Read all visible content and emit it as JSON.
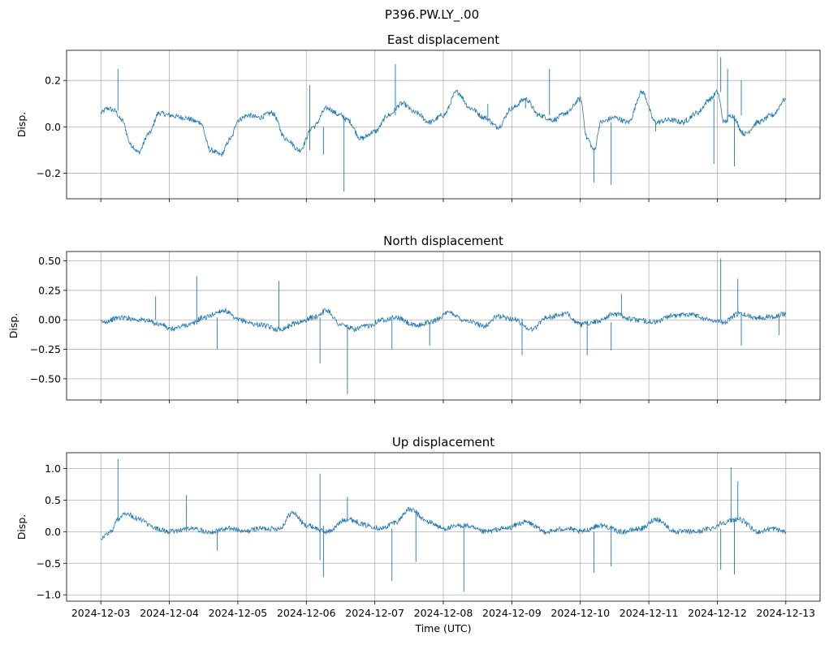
{
  "figure_title": "P396.PW.LY_.00",
  "colors": {
    "line": "#1f77b4",
    "grid": "#b0b0b0",
    "axes": "#000000"
  },
  "chart_data": [
    {
      "type": "line",
      "title": "East displacement",
      "xlabel": "",
      "ylabel": "Disp.",
      "ylim": [
        -0.31,
        0.33
      ],
      "yticks": [
        -0.2,
        0.0,
        0.2
      ],
      "ytick_labels": [
        "−0.2",
        "0.0",
        "0.2"
      ],
      "x_categories": [
        "2024-12-03",
        "2024-12-04",
        "2024-12-05",
        "2024-12-06",
        "2024-12-07",
        "2024-12-08",
        "2024-12-09",
        "2024-12-10",
        "2024-12-11",
        "2024-12-12",
        "2024-12-13"
      ],
      "xlim_days": [
        -0.5,
        10.5
      ],
      "grid": true,
      "series": [
        {
          "name": "East",
          "x_days": [
            0,
            0.1,
            0.2,
            0.3,
            0.45,
            0.55,
            0.7,
            0.85,
            1.0,
            1.2,
            1.45,
            1.6,
            1.75,
            1.9,
            2.0,
            2.15,
            2.3,
            2.5,
            2.7,
            2.9,
            3.1,
            3.3,
            3.5,
            3.6,
            3.8,
            4.0,
            4.2,
            4.4,
            4.6,
            4.8,
            5.0,
            5.2,
            5.4,
            5.6,
            5.8,
            6.0,
            6.2,
            6.4,
            6.6,
            6.8,
            7.0,
            7.1,
            7.2,
            7.3,
            7.5,
            7.7,
            7.9,
            8.1,
            8.3,
            8.5,
            8.7,
            8.9,
            9.0,
            9.1,
            9.2,
            9.4,
            9.6,
            9.8,
            10.0
          ],
          "y": [
            0.06,
            0.08,
            0.07,
            0.03,
            -0.08,
            -0.11,
            -0.03,
            0.06,
            0.05,
            0.04,
            0.02,
            -0.1,
            -0.12,
            -0.05,
            0.03,
            0.05,
            0.04,
            0.06,
            -0.05,
            -0.1,
            0.0,
            0.08,
            0.05,
            0.03,
            -0.05,
            -0.02,
            0.05,
            0.1,
            0.06,
            0.02,
            0.05,
            0.15,
            0.08,
            0.04,
            0.0,
            0.08,
            0.12,
            0.05,
            0.03,
            0.06,
            0.12,
            -0.05,
            -0.1,
            0.02,
            0.04,
            0.02,
            0.15,
            0.02,
            0.03,
            0.02,
            0.06,
            0.12,
            0.15,
            0.02,
            0.05,
            -0.03,
            0.02,
            0.05,
            0.12
          ],
          "spikes": [
            [
              0.25,
              0.25
            ],
            [
              3.05,
              0.18
            ],
            [
              3.55,
              -0.28
            ],
            [
              3.25,
              -0.12
            ],
            [
              4.3,
              0.27
            ],
            [
              5.65,
              0.1
            ],
            [
              6.2,
              0.08
            ],
            [
              6.55,
              0.25
            ],
            [
              7.2,
              -0.24
            ],
            [
              7.45,
              -0.25
            ],
            [
              8.1,
              -0.02
            ],
            [
              8.55,
              0.04
            ],
            [
              9.05,
              0.3
            ],
            [
              8.95,
              -0.16
            ],
            [
              9.15,
              0.25
            ],
            [
              9.25,
              -0.17
            ],
            [
              9.35,
              0.2
            ]
          ]
        }
      ]
    },
    {
      "type": "line",
      "title": "North displacement",
      "xlabel": "",
      "ylabel": "Disp.",
      "ylim": [
        -0.68,
        0.58
      ],
      "yticks": [
        -0.5,
        -0.25,
        0.0,
        0.25,
        0.5
      ],
      "ytick_labels": [
        "−0.50",
        "−0.25",
        "0.00",
        "0.25",
        "0.50"
      ],
      "x_categories": [
        "2024-12-03",
        "2024-12-04",
        "2024-12-05",
        "2024-12-06",
        "2024-12-07",
        "2024-12-08",
        "2024-12-09",
        "2024-12-10",
        "2024-12-11",
        "2024-12-12",
        "2024-12-13"
      ],
      "xlim_days": [
        -0.5,
        10.5
      ],
      "grid": true,
      "series": [
        {
          "name": "North",
          "x_days": [
            0,
            0.3,
            0.6,
            0.9,
            1.0,
            1.3,
            1.5,
            1.8,
            2.0,
            2.3,
            2.6,
            2.9,
            3.1,
            3.3,
            3.5,
            3.7,
            3.9,
            4.1,
            4.3,
            4.6,
            4.8,
            5.1,
            5.3,
            5.6,
            5.8,
            6.0,
            6.3,
            6.5,
            6.8,
            7.0,
            7.2,
            7.5,
            7.8,
            8.1,
            8.3,
            8.6,
            8.9,
            9.1,
            9.3,
            9.6,
            9.8,
            10.0
          ],
          "y": [
            -0.02,
            0.02,
            0.0,
            -0.04,
            -0.08,
            -0.04,
            0.02,
            0.08,
            0.0,
            -0.04,
            -0.08,
            -0.02,
            0.02,
            0.08,
            -0.04,
            -0.08,
            -0.05,
            0.0,
            0.02,
            -0.05,
            -0.02,
            0.06,
            0.0,
            -0.05,
            0.03,
            0.01,
            -0.08,
            0.02,
            0.05,
            -0.04,
            -0.02,
            0.05,
            0.0,
            -0.02,
            0.03,
            0.05,
            0.0,
            -0.02,
            0.05,
            0.02,
            0.03,
            0.05
          ],
          "spikes": [
            [
              0.8,
              0.2
            ],
            [
              1.4,
              0.37
            ],
            [
              1.7,
              -0.25
            ],
            [
              2.6,
              0.33
            ],
            [
              3.2,
              -0.37
            ],
            [
              3.6,
              -0.63
            ],
            [
              4.25,
              -0.25
            ],
            [
              4.8,
              -0.22
            ],
            [
              6.15,
              -0.3
            ],
            [
              7.1,
              -0.3
            ],
            [
              7.6,
              0.22
            ],
            [
              7.45,
              -0.26
            ],
            [
              9.05,
              0.52
            ],
            [
              9.3,
              0.35
            ],
            [
              9.35,
              -0.22
            ],
            [
              9.9,
              -0.13
            ]
          ]
        }
      ]
    },
    {
      "type": "line",
      "title": "Up displacement",
      "xlabel": "Time (UTC)",
      "ylabel": "Disp.",
      "ylim": [
        -1.1,
        1.25
      ],
      "yticks": [
        -1.0,
        -0.5,
        0.0,
        0.5,
        1.0
      ],
      "ytick_labels": [
        "−1.0",
        "−0.5",
        "0.0",
        "0.5",
        "1.0"
      ],
      "x_categories": [
        "2024-12-03",
        "2024-12-04",
        "2024-12-05",
        "2024-12-06",
        "2024-12-07",
        "2024-12-08",
        "2024-12-09",
        "2024-12-10",
        "2024-12-11",
        "2024-12-12",
        "2024-12-13"
      ],
      "xlim_days": [
        -0.5,
        10.5
      ],
      "grid": true,
      "series": [
        {
          "name": "Up",
          "x_days": [
            0,
            0.15,
            0.25,
            0.35,
            0.55,
            0.8,
            1.0,
            1.3,
            1.6,
            1.9,
            2.1,
            2.3,
            2.6,
            2.8,
            3.0,
            3.3,
            3.6,
            3.9,
            4.1,
            4.3,
            4.5,
            4.8,
            5.0,
            5.3,
            5.6,
            5.9,
            6.2,
            6.5,
            6.8,
            7.0,
            7.3,
            7.6,
            7.9,
            8.1,
            8.4,
            8.7,
            8.9,
            9.1,
            9.3,
            9.6,
            9.8,
            10.0
          ],
          "y": [
            -0.1,
            0.0,
            0.2,
            0.3,
            0.2,
            0.05,
            0.0,
            0.05,
            0.0,
            0.05,
            0.0,
            0.05,
            0.05,
            0.3,
            0.1,
            0.0,
            0.2,
            0.1,
            0.05,
            0.15,
            0.35,
            0.15,
            0.05,
            0.1,
            0.0,
            0.05,
            0.15,
            0.0,
            0.05,
            0.0,
            0.1,
            0.0,
            0.05,
            0.2,
            0.0,
            0.0,
            0.05,
            0.15,
            0.2,
            0.0,
            0.05,
            0.0
          ],
          "spikes": [
            [
              0.25,
              1.15
            ],
            [
              1.25,
              0.58
            ],
            [
              1.7,
              -0.3
            ],
            [
              3.2,
              0.92
            ],
            [
              3.25,
              -0.72
            ],
            [
              3.6,
              0.55
            ],
            [
              3.2,
              -0.45
            ],
            [
              4.25,
              -0.78
            ],
            [
              4.6,
              -0.48
            ],
            [
              5.3,
              -0.95
            ],
            [
              7.2,
              -0.65
            ],
            [
              7.45,
              -0.55
            ],
            [
              9.05,
              -0.6
            ],
            [
              9.2,
              1.02
            ],
            [
              9.25,
              -0.68
            ],
            [
              9.3,
              0.8
            ]
          ]
        }
      ]
    }
  ]
}
